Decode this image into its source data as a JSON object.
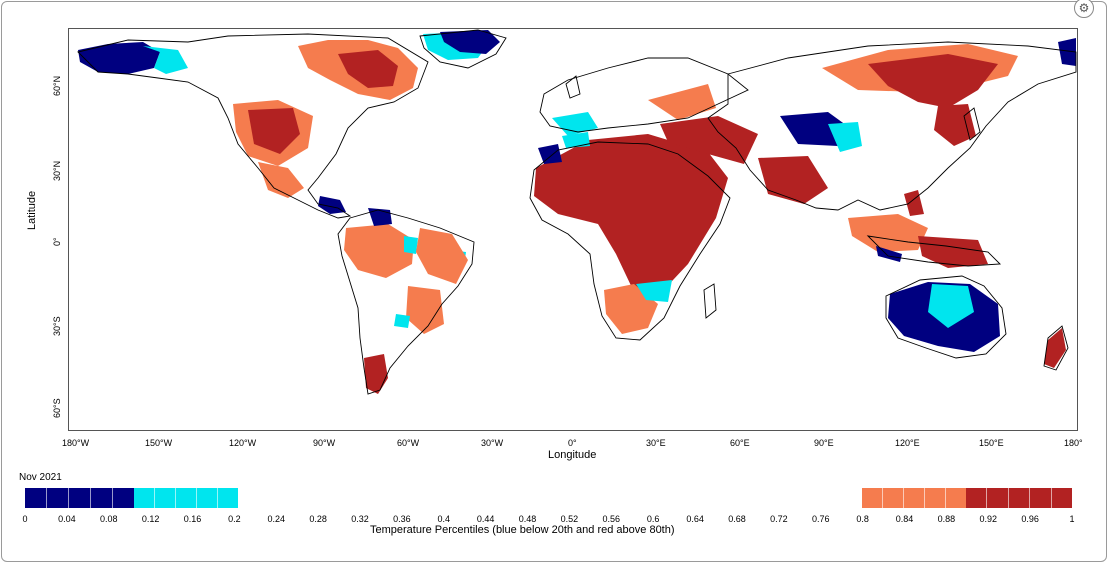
{
  "map": {
    "xlabel": "Longitude",
    "ylabel": "Latitude",
    "x_ticks": [
      "180°W",
      "150°W",
      "120°W",
      "90°W",
      "60°W",
      "30°W",
      "0°",
      "30°E",
      "60°E",
      "90°E",
      "120°E",
      "150°E",
      "180°"
    ],
    "y_ticks": [
      "60°N",
      "30°N",
      "0°",
      "30°S",
      "60°S"
    ],
    "lon_range": [
      -180,
      180
    ],
    "lat_range": [
      -72,
      75
    ],
    "colors": {
      "dark_blue": "#000080",
      "cyan": "#00e5ee",
      "light_red": "#f57c4e",
      "dark_red": "#b22222",
      "land_outline": "#000000"
    }
  },
  "legend": {
    "period": "Nov 2021",
    "title": "Temperature Percentiles (blue below 20th and red above 80th)",
    "ticks": [
      "0",
      "0.04",
      "0.08",
      "0.12",
      "0.16",
      "0.2",
      "0.24",
      "0.28",
      "0.32",
      "0.36",
      "0.4",
      "0.44",
      "0.48",
      "0.52",
      "0.56",
      "0.6",
      "0.64",
      "0.68",
      "0.72",
      "0.76",
      "0.8",
      "0.84",
      "0.88",
      "0.92",
      "0.96",
      "1"
    ],
    "blue_segments": [
      {
        "from": 0,
        "to": 0.1,
        "color": "#000080"
      },
      {
        "from": 0.1,
        "to": 0.2,
        "color": "#00e5ee"
      }
    ],
    "red_segments": [
      {
        "from": 0.8,
        "to": 0.9,
        "color": "#f57c4e"
      },
      {
        "from": 0.9,
        "to": 1.0,
        "color": "#b22222"
      }
    ]
  }
}
